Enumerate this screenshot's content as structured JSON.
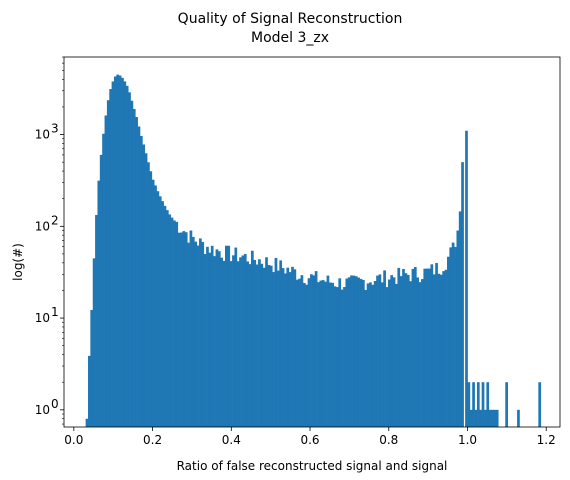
{
  "chart_data": {
    "type": "bar",
    "title": "Quality of Signal Reconstruction",
    "subtitle": "Model 3_zx",
    "xlabel": "Ratio of false reconstructed signal and signal",
    "ylabel": "log(#)",
    "yscale": "log",
    "xlim": [
      -0.025,
      1.235
    ],
    "ylim": [
      0.65,
      7000
    ],
    "grid": false,
    "color": "#1f77b4",
    "bin_width": 0.006,
    "x_ticks": [
      {
        "value": 0.0,
        "label": "0.0"
      },
      {
        "value": 0.2,
        "label": "0.2"
      },
      {
        "value": 0.4,
        "label": "0.4"
      },
      {
        "value": 0.6,
        "label": "0.6"
      },
      {
        "value": 0.8,
        "label": "0.8"
      },
      {
        "value": 1.0,
        "label": "1.0"
      },
      {
        "value": 1.2,
        "label": "1.2"
      }
    ],
    "y_ticks": [
      {
        "value": 1,
        "base": "10",
        "exp": "0"
      },
      {
        "value": 10,
        "base": "10",
        "exp": "1"
      },
      {
        "value": 100,
        "base": "10",
        "exp": "2"
      },
      {
        "value": 1000,
        "base": "10",
        "exp": "3"
      }
    ],
    "key_points": [
      [
        0.033,
        0.8
      ],
      [
        0.036,
        2.5
      ],
      [
        0.042,
        6
      ],
      [
        0.048,
        25
      ],
      [
        0.054,
        80
      ],
      [
        0.06,
        220
      ],
      [
        0.066,
        450
      ],
      [
        0.072,
        800
      ],
      [
        0.078,
        1300
      ],
      [
        0.084,
        2000
      ],
      [
        0.09,
        2800
      ],
      [
        0.096,
        3500
      ],
      [
        0.102,
        4100
      ],
      [
        0.108,
        4500
      ],
      [
        0.114,
        4500
      ],
      [
        0.12,
        4300
      ],
      [
        0.126,
        4000
      ],
      [
        0.132,
        3600
      ],
      [
        0.138,
        3200
      ],
      [
        0.144,
        2600
      ],
      [
        0.15,
        2100
      ],
      [
        0.16,
        1500
      ],
      [
        0.17,
        1000
      ],
      [
        0.18,
        700
      ],
      [
        0.19,
        480
      ],
      [
        0.2,
        330
      ],
      [
        0.215,
        230
      ],
      [
        0.23,
        170
      ],
      [
        0.245,
        130
      ],
      [
        0.26,
        110
      ],
      [
        0.28,
        90
      ],
      [
        0.3,
        75
      ],
      [
        0.33,
        62
      ],
      [
        0.36,
        55
      ],
      [
        0.4,
        50
      ],
      [
        0.45,
        45
      ],
      [
        0.5,
        40
      ],
      [
        0.55,
        33
      ],
      [
        0.6,
        28
      ],
      [
        0.65,
        25
      ],
      [
        0.7,
        24
      ],
      [
        0.75,
        26
      ],
      [
        0.8,
        28
      ],
      [
        0.85,
        30
      ],
      [
        0.9,
        32
      ],
      [
        0.93,
        36
      ],
      [
        0.95,
        45
      ],
      [
        0.965,
        60
      ],
      [
        0.975,
        90
      ],
      [
        0.985,
        200
      ],
      [
        0.991,
        300
      ]
    ],
    "spikes": [
      {
        "x": 0.997,
        "y": 1100
      },
      {
        "x": 0.991,
        "y": 500
      }
    ],
    "tail_bins": [
      [
        1.003,
        2.0
      ],
      [
        1.009,
        1.0
      ],
      [
        1.015,
        2.0
      ],
      [
        1.021,
        1.0
      ],
      [
        1.027,
        2.0
      ],
      [
        1.033,
        1.0
      ],
      [
        1.039,
        2.0
      ],
      [
        1.045,
        1.0
      ],
      [
        1.051,
        2.0
      ],
      [
        1.057,
        1.0
      ],
      [
        1.063,
        1.0
      ],
      [
        1.069,
        1.0
      ],
      [
        1.075,
        1.0
      ],
      [
        1.099,
        2.0
      ],
      [
        1.129,
        1.0
      ],
      [
        1.183,
        2.0
      ]
    ]
  }
}
